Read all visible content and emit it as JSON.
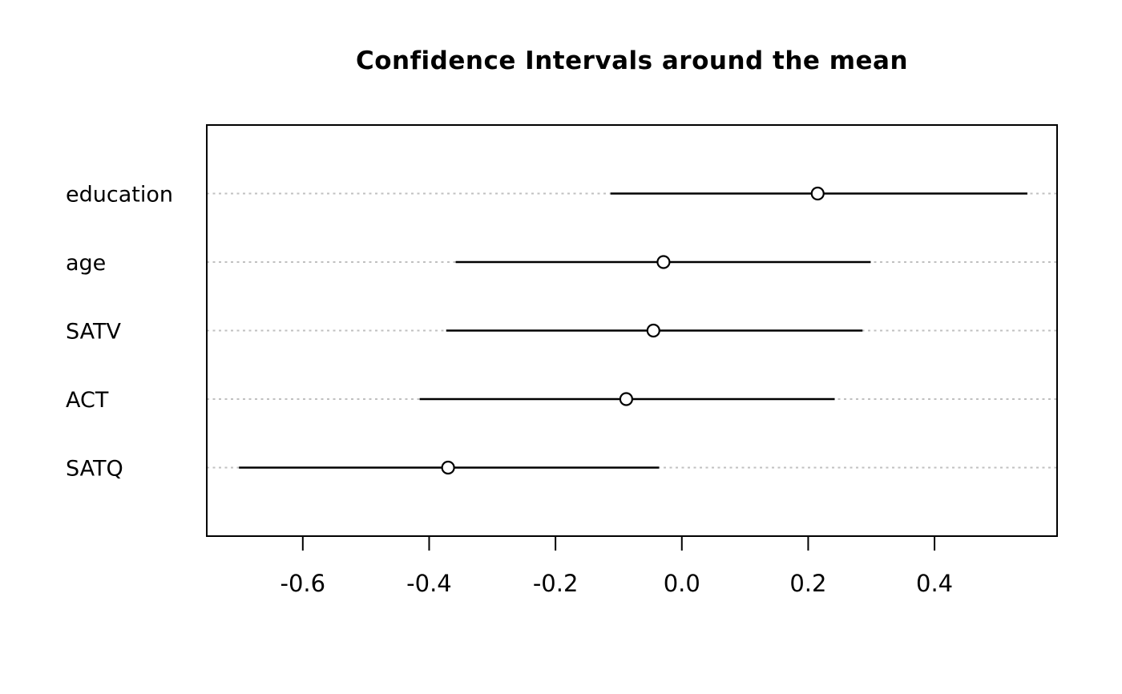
{
  "chart_data": {
    "type": "scatter",
    "subtype": "horizontal-confidence-interval-dot-plot",
    "title": "Confidence Intervals around the mean",
    "xlabel": "",
    "ylabel": "",
    "categories": [
      "education",
      "age",
      "SATV",
      "ACT",
      "SATQ"
    ],
    "series": [
      {
        "name": "mean",
        "values": [
          0.215,
          -0.029,
          -0.045,
          -0.088,
          -0.37
        ]
      }
    ],
    "ci_lower": [
      -0.113,
      -0.358,
      -0.373,
      -0.415,
      -0.701
    ],
    "ci_upper": [
      0.547,
      0.299,
      0.286,
      0.242,
      -0.036
    ],
    "x_axis": {
      "min": -0.752,
      "max": 0.594,
      "ticks": [
        -0.6,
        -0.4,
        -0.2,
        0.0,
        0.2,
        0.4
      ],
      "tick_labels": [
        "-0.6",
        "-0.4",
        "-0.2",
        "0.0",
        "0.2",
        "0.4"
      ]
    },
    "legend": "none",
    "grid": "dotted horizontal gridline at each category row",
    "marker": "open-circle",
    "colors": {
      "interval_line": "#000000",
      "marker_stroke": "#000000",
      "marker_fill": "#ffffff",
      "gridline": "#c0c0c0",
      "box_border": "#000000",
      "text": "#000000",
      "background": "#ffffff"
    }
  }
}
